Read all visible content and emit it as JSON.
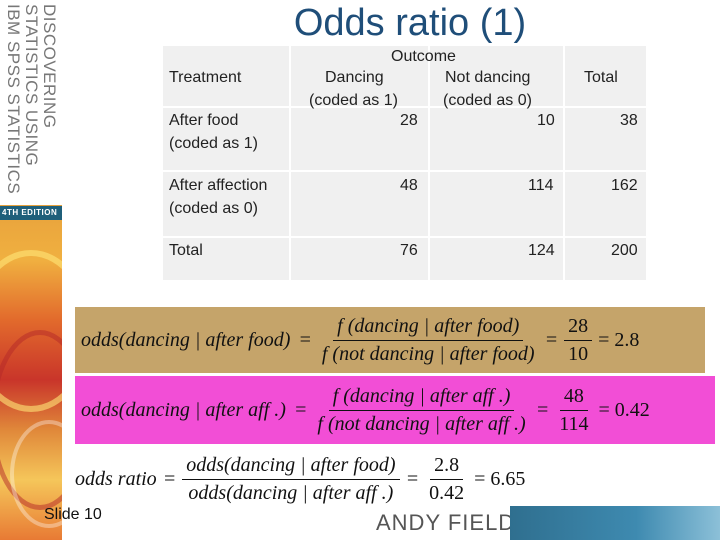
{
  "slide": {
    "title": "Odds ratio (1)",
    "slide_number": "Slide 10",
    "author": "ANDY FIELD"
  },
  "book": {
    "title_lines": [
      "DISCOVERING",
      "STATISTICS USING",
      "IBM SPSS STATISTICS"
    ],
    "edition": "4TH EDITION"
  },
  "table": {
    "outcome_label": "Outcome",
    "treatment_label": "Treatment",
    "col_dancing": "Dancing",
    "col_dancing_code": "(coded as 1)",
    "col_not_dancing": "Not dancing",
    "col_not_dancing_code": "(coded as 0)",
    "col_total": "Total",
    "rows": [
      {
        "label": "After food",
        "code": "(coded as 1)",
        "dancing": "28",
        "not_dancing": "10",
        "total": "38"
      },
      {
        "label": "After affection",
        "code": "(coded as 0)",
        "dancing": "48",
        "not_dancing": "114",
        "total": "162"
      },
      {
        "label": "Total",
        "code": "",
        "dancing": "76",
        "not_dancing": "124",
        "total": "200"
      }
    ]
  },
  "formulas": {
    "odds_food": {
      "lhs": "odds(dancing | after food)",
      "eq": "=",
      "frac_num": "f (dancing | after food)",
      "frac_den": "f (not dancing | after food)",
      "val_num": "28",
      "val_den": "10",
      "result": "= 2.8"
    },
    "odds_aff": {
      "lhs": "odds(dancing | after aff .)",
      "eq": "=",
      "frac_num": "f (dancing | after aff .)",
      "frac_den": "f (not dancing | after aff .)",
      "val_num": "48",
      "val_den": "114",
      "result": "= 0.42"
    },
    "odds_ratio": {
      "lhs": "odds ratio",
      "eq": "=",
      "frac_num": "odds(dancing | after food)",
      "frac_den": "odds(dancing | after aff .)",
      "val_num": "2.8",
      "val_den": "0.42",
      "result": "= 6.65"
    }
  },
  "colors": {
    "title": "#1f4e79",
    "food_box": "#c5a46a",
    "aff_box": "#f24ed6"
  }
}
